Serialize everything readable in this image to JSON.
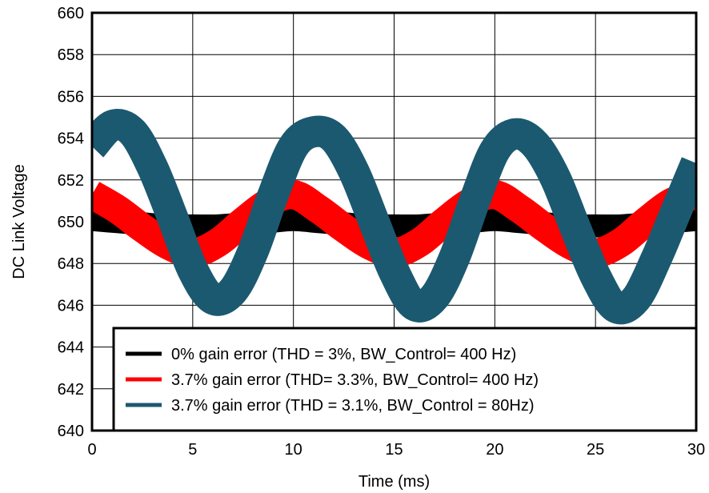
{
  "chart_data": {
    "type": "line",
    "title": "",
    "xlabel": "Time (ms)",
    "ylabel": "DC Link Voltage",
    "xlim": [
      0,
      30
    ],
    "ylim": [
      640,
      660
    ],
    "xticks": [
      0,
      5,
      10,
      15,
      20,
      25,
      30
    ],
    "yticks": [
      640,
      642,
      644,
      646,
      648,
      650,
      652,
      654,
      656,
      658,
      660
    ],
    "grid": true,
    "legend_position": "bottom-right",
    "series": [
      {
        "name": "0% gain error (THD = 3%, BW_Control= 400 Hz)",
        "color": "#000000",
        "x": [
          0,
          1.25,
          2.5,
          3.75,
          5,
          6.25,
          7.5,
          8.75,
          10,
          11.25,
          12.5,
          13.75,
          15,
          16.25,
          17.5,
          18.75,
          20,
          21.25,
          22.5,
          23.75,
          25,
          26.25,
          27.5,
          28.75,
          30
        ],
        "y": [
          650.1,
          650.0,
          649.9,
          649.8,
          649.8,
          649.8,
          649.9,
          650.0,
          650.1,
          650.0,
          649.9,
          649.8,
          649.8,
          649.8,
          649.9,
          650.0,
          650.1,
          650.0,
          649.9,
          649.8,
          649.8,
          649.8,
          649.9,
          650.0,
          650.1
        ],
        "band": 0.55
      },
      {
        "name": "3.7% gain error (THD= 3.3%, BW_Control= 400 Hz)",
        "color": "#ff0000",
        "x": [
          0,
          1.25,
          2.5,
          3.75,
          5,
          6.25,
          7.5,
          8.75,
          10,
          11.25,
          12.5,
          13.75,
          15,
          16.25,
          17.5,
          18.75,
          20,
          21.25,
          22.5,
          23.75,
          25,
          26.25,
          27.5,
          28.75,
          30
        ],
        "y": [
          651.3,
          650.6,
          649.7,
          648.9,
          648.5,
          649.0,
          650.0,
          650.9,
          651.3,
          650.6,
          649.7,
          648.9,
          648.5,
          649.0,
          650.0,
          650.9,
          651.3,
          650.6,
          649.7,
          648.9,
          648.5,
          649.0,
          650.0,
          650.9,
          651.3
        ],
        "band": 0.7
      },
      {
        "name": "3.7% gain error (THD = 3.1%, BW_Control = 80Hz)",
        "color": "#1b5970",
        "x": [
          0,
          1,
          2,
          3,
          4,
          5,
          6,
          7,
          8,
          9,
          10,
          11,
          12,
          13,
          14,
          15,
          16,
          17,
          18,
          19,
          20,
          21,
          22,
          23,
          24,
          25,
          26,
          27,
          28,
          29,
          30
        ],
        "y": [
          653.6,
          654.6,
          654.3,
          652.6,
          650.2,
          647.7,
          646.3,
          646.7,
          648.6,
          651.3,
          653.6,
          654.3,
          654.0,
          652.4,
          650.0,
          647.6,
          646.0,
          646.4,
          648.3,
          651.0,
          653.4,
          654.2,
          653.7,
          652.1,
          649.7,
          647.4,
          645.9,
          646.3,
          648.2,
          650.5,
          652.8
        ],
        "band": 0.75
      }
    ]
  }
}
